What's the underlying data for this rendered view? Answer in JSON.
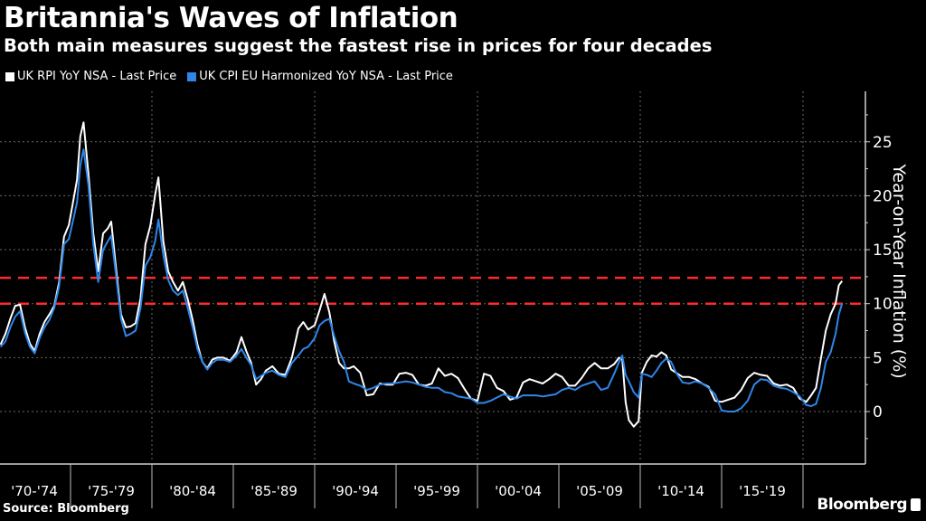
{
  "header": {
    "title": "Britannia's Waves of Inflation",
    "subtitle": "Both main measures suggest the fastest rise in prices for four decades"
  },
  "footer": {
    "source": "Source: Bloomberg",
    "brand": "Bloomberg"
  },
  "chart_data": {
    "type": "line",
    "title": "Britannia's Waves of Inflation",
    "subtitle": "Both main measures suggest the fastest rise in prices for four decades",
    "xlabel": "",
    "ylabel": "Year-on-Year Inflation (%)",
    "ylim": [
      -3,
      29
    ],
    "yticks": [
      0,
      5,
      10,
      15,
      20,
      25
    ],
    "xlim": [
      1970.7,
      2022.6
    ],
    "x_tick_labels": [
      "'70-'74",
      "'75-'79",
      "'80-'84",
      "'85-'89",
      "'90-'94",
      "'95-'99",
      "'00-'04",
      "'05-'09",
      "'10-'14",
      "'15-'19"
    ],
    "x_tick_starts": [
      1970,
      1975,
      1980,
      1985,
      1990,
      1995,
      2000,
      2005,
      2010,
      2015,
      2020
    ],
    "grid": true,
    "legend_position": "top-left",
    "reference_lines": [
      {
        "value": 12.4,
        "color": "#ff2a2a",
        "style": "dashed"
      },
      {
        "value": 10.0,
        "color": "#ff2a2a",
        "style": "dashed"
      }
    ],
    "series": [
      {
        "name": "UK RPI YoY NSA - Last Price",
        "color": "#ffffff",
        "x": [
          1970.7,
          1971.0,
          1971.3,
          1971.6,
          1971.9,
          1972.2,
          1972.5,
          1972.8,
          1973.1,
          1973.4,
          1973.7,
          1974.0,
          1974.3,
          1974.6,
          1974.9,
          1975.2,
          1975.4,
          1975.6,
          1975.8,
          1976.1,
          1976.4,
          1976.7,
          1977.0,
          1977.3,
          1977.5,
          1977.8,
          1978.1,
          1978.4,
          1978.7,
          1979.0,
          1979.3,
          1979.6,
          1979.9,
          1980.2,
          1980.4,
          1980.7,
          1981.0,
          1981.3,
          1981.6,
          1981.9,
          1982.2,
          1982.5,
          1982.8,
          1983.1,
          1983.4,
          1983.7,
          1984.0,
          1984.4,
          1984.8,
          1985.2,
          1985.5,
          1985.8,
          1986.1,
          1986.4,
          1986.7,
          1987.0,
          1987.4,
          1987.8,
          1988.2,
          1988.6,
          1989.0,
          1989.3,
          1989.6,
          1990.0,
          1990.3,
          1990.6,
          1990.9,
          1991.2,
          1991.5,
          1991.8,
          1992.1,
          1992.4,
          1992.8,
          1993.2,
          1993.6,
          1994.0,
          1994.4,
          1994.8,
          1995.2,
          1995.6,
          1996.0,
          1996.4,
          1996.8,
          1997.2,
          1997.6,
          1998.0,
          1998.4,
          1998.8,
          1999.2,
          1999.6,
          2000.0,
          2000.4,
          2000.8,
          2001.2,
          2001.6,
          2002.0,
          2002.4,
          2002.8,
          2003.2,
          2003.6,
          2004.0,
          2004.4,
          2004.8,
          2005.2,
          2005.6,
          2006.0,
          2006.4,
          2006.8,
          2007.2,
          2007.6,
          2008.0,
          2008.4,
          2008.7,
          2008.9,
          2009.1,
          2009.3,
          2009.6,
          2009.9,
          2010.1,
          2010.4,
          2010.7,
          2011.0,
          2011.3,
          2011.6,
          2011.9,
          2012.2,
          2012.6,
          2013.0,
          2013.4,
          2013.8,
          2014.2,
          2014.6,
          2015.0,
          2015.4,
          2015.8,
          2016.2,
          2016.6,
          2017.0,
          2017.4,
          2017.8,
          2018.2,
          2018.6,
          2019.0,
          2019.4,
          2019.8,
          2020.2,
          2020.5,
          2020.8,
          2021.1,
          2021.4,
          2021.7,
          2022.0,
          2022.2,
          2022.4
        ],
        "values": [
          6.2,
          7.2,
          8.6,
          9.8,
          9.9,
          7.8,
          6.3,
          5.6,
          7.2,
          8.3,
          9.0,
          9.8,
          12.0,
          16.2,
          17.3,
          19.8,
          21.5,
          25.5,
          26.8,
          22.0,
          16.5,
          13.0,
          16.5,
          17.0,
          17.6,
          13.2,
          9.0,
          7.8,
          7.9,
          8.2,
          10.5,
          15.5,
          17.2,
          20.1,
          21.7,
          15.8,
          13.0,
          12.0,
          11.2,
          12.0,
          10.4,
          8.5,
          6.2,
          4.6,
          4.0,
          4.8,
          5.0,
          5.0,
          4.7,
          5.5,
          6.9,
          5.6,
          4.5,
          2.5,
          3.0,
          3.8,
          4.2,
          3.5,
          3.4,
          5.0,
          7.7,
          8.3,
          7.6,
          8.0,
          9.4,
          10.9,
          9.2,
          6.5,
          4.5,
          4.0,
          4.0,
          4.2,
          3.6,
          1.5,
          1.6,
          2.6,
          2.5,
          2.5,
          3.5,
          3.6,
          3.4,
          2.5,
          2.4,
          2.6,
          4.0,
          3.3,
          3.5,
          3.1,
          2.1,
          1.2,
          1.0,
          3.5,
          3.3,
          2.2,
          1.9,
          1.1,
          1.3,
          2.7,
          3.0,
          2.8,
          2.6,
          3.0,
          3.5,
          3.2,
          2.4,
          2.4,
          3.1,
          4.0,
          4.5,
          4.0,
          4.0,
          4.4,
          5.0,
          4.8,
          0.9,
          -0.8,
          -1.4,
          -0.9,
          3.6,
          4.6,
          5.2,
          5.1,
          5.5,
          5.2,
          3.9,
          3.6,
          3.2,
          3.2,
          3.0,
          2.6,
          2.3,
          1.0,
          0.9,
          1.1,
          1.3,
          2.0,
          3.1,
          3.6,
          3.4,
          3.3,
          2.6,
          2.4,
          2.5,
          2.2,
          1.2,
          0.9,
          1.5,
          2.2,
          4.9,
          7.5,
          9.0,
          10.0,
          11.7,
          12.1
        ]
      },
      {
        "name": "UK CPI EU Harmonized YoY NSA - Last Price",
        "color": "#2f86e8",
        "x": [
          1970.7,
          1971.0,
          1971.3,
          1971.6,
          1971.9,
          1972.2,
          1972.5,
          1972.8,
          1973.1,
          1973.4,
          1973.7,
          1974.0,
          1974.3,
          1974.6,
          1974.9,
          1975.2,
          1975.4,
          1975.6,
          1975.8,
          1976.1,
          1976.4,
          1976.7,
          1977.0,
          1977.3,
          1977.5,
          1977.8,
          1978.1,
          1978.4,
          1978.7,
          1979.0,
          1979.3,
          1979.6,
          1979.9,
          1980.2,
          1980.4,
          1980.7,
          1981.0,
          1981.3,
          1981.6,
          1981.9,
          1982.2,
          1982.5,
          1982.8,
          1983.1,
          1983.4,
          1983.7,
          1984.0,
          1984.4,
          1984.8,
          1985.2,
          1985.5,
          1985.8,
          1986.1,
          1986.4,
          1986.7,
          1987.0,
          1987.4,
          1987.8,
          1988.2,
          1988.6,
          1989.0,
          1989.3,
          1989.6,
          1990.0,
          1990.3,
          1990.6,
          1990.9,
          1991.2,
          1991.5,
          1991.8,
          1992.1,
          1992.4,
          1992.8,
          1993.2,
          1993.6,
          1994.0,
          1994.4,
          1994.8,
          1995.2,
          1995.6,
          1996.0,
          1996.4,
          1996.8,
          1997.2,
          1997.6,
          1998.0,
          1998.4,
          1998.8,
          1999.2,
          1999.6,
          2000.0,
          2000.4,
          2000.8,
          2001.2,
          2001.6,
          2002.0,
          2002.4,
          2002.8,
          2003.2,
          2003.6,
          2004.0,
          2004.4,
          2004.8,
          2005.2,
          2005.6,
          2006.0,
          2006.4,
          2006.8,
          2007.2,
          2007.6,
          2008.0,
          2008.4,
          2008.7,
          2008.9,
          2009.1,
          2009.3,
          2009.6,
          2009.9,
          2010.1,
          2010.4,
          2010.7,
          2011.0,
          2011.3,
          2011.6,
          2011.9,
          2012.2,
          2012.6,
          2013.0,
          2013.4,
          2013.8,
          2014.2,
          2014.6,
          2015.0,
          2015.4,
          2015.8,
          2016.2,
          2016.6,
          2017.0,
          2017.4,
          2017.8,
          2018.2,
          2018.6,
          2019.0,
          2019.4,
          2019.8,
          2020.2,
          2020.5,
          2020.8,
          2021.1,
          2021.4,
          2021.7,
          2022.0,
          2022.2,
          2022.4
        ],
        "values": [
          6.0,
          6.5,
          7.8,
          8.8,
          9.3,
          7.3,
          6.0,
          5.4,
          6.8,
          7.8,
          8.5,
          9.6,
          11.6,
          15.5,
          16.0,
          18.0,
          19.4,
          22.8,
          24.3,
          21.0,
          15.5,
          12.0,
          15.0,
          15.8,
          16.3,
          12.6,
          8.6,
          7.0,
          7.2,
          7.5,
          9.6,
          13.5,
          14.3,
          15.8,
          17.8,
          14.5,
          12.2,
          11.2,
          10.8,
          11.2,
          9.6,
          7.8,
          5.8,
          4.6,
          3.9,
          4.5,
          4.8,
          4.8,
          4.6,
          5.2,
          5.8,
          5.0,
          4.3,
          3.0,
          3.3,
          3.6,
          3.8,
          3.4,
          3.2,
          4.5,
          5.2,
          5.8,
          6.0,
          6.8,
          8.0,
          8.4,
          8.6,
          7.0,
          5.6,
          4.6,
          2.8,
          2.6,
          2.4,
          2.0,
          2.2,
          2.5,
          2.6,
          2.6,
          2.7,
          2.8,
          2.7,
          2.5,
          2.3,
          2.2,
          2.2,
          1.8,
          1.7,
          1.4,
          1.3,
          1.2,
          0.8,
          0.8,
          1.0,
          1.3,
          1.6,
          1.4,
          1.2,
          1.5,
          1.5,
          1.5,
          1.4,
          1.5,
          1.6,
          2.0,
          2.2,
          2.0,
          2.4,
          2.6,
          2.8,
          2.0,
          2.2,
          3.5,
          4.6,
          5.2,
          3.4,
          2.8,
          1.8,
          1.3,
          3.5,
          3.4,
          3.2,
          3.8,
          4.5,
          4.9,
          4.6,
          3.6,
          2.7,
          2.6,
          2.8,
          2.6,
          2.2,
          1.6,
          0.1,
          0.0,
          0.0,
          0.3,
          1.0,
          2.5,
          3.0,
          2.9,
          2.4,
          2.2,
          2.1,
          1.8,
          1.4,
          0.6,
          0.5,
          0.7,
          2.2,
          4.6,
          5.5,
          7.2,
          9.0,
          10.0
        ]
      }
    ]
  }
}
